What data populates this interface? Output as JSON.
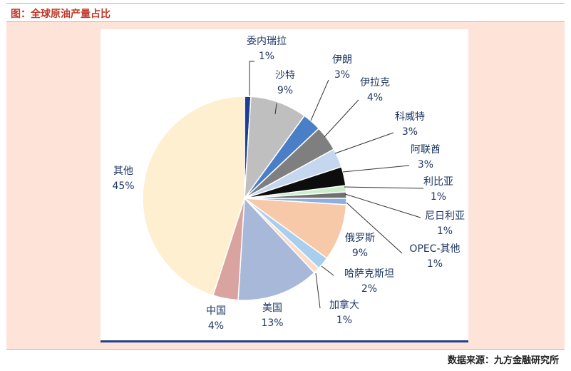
{
  "header": {
    "title": "图：全球原油产量占比"
  },
  "footer": {
    "source": "数据来源：九方金融研究所"
  },
  "chart_data": {
    "type": "pie",
    "start_angle_deg": 0,
    "direction": "clockwise",
    "slices": [
      {
        "label": "委内瑞拉",
        "value": 1,
        "pct": "1%",
        "color": "#1f3e8f"
      },
      {
        "label": "沙特",
        "value": 9,
        "pct": "9%",
        "color": "#bfbfbf"
      },
      {
        "label": "伊朗",
        "value": 3,
        "pct": "3%",
        "color": "#4a7fc7"
      },
      {
        "label": "伊拉克",
        "value": 4,
        "pct": "4%",
        "color": "#7f7f7f"
      },
      {
        "label": "科威特",
        "value": 3,
        "pct": "3%",
        "color": "#c5d7ee"
      },
      {
        "label": "阿联酋",
        "value": 3,
        "pct": "3%",
        "color": "#0d0d0d"
      },
      {
        "label": "利比亚",
        "value": 1,
        "pct": "1%",
        "color": "#c9efc9"
      },
      {
        "label": "尼日利亚",
        "value": 1,
        "pct": "1%",
        "color": "#707070"
      },
      {
        "label": "OPEC-其他",
        "value": 1,
        "pct": "1%",
        "color": "#8eaee0"
      },
      {
        "label": "俄罗斯",
        "value": 9,
        "pct": "9%",
        "color": "#f8c9a8"
      },
      {
        "label": "哈萨克斯坦",
        "value": 2,
        "pct": "2%",
        "color": "#a9cfee"
      },
      {
        "label": "加拿大",
        "value": 1,
        "pct": "1%",
        "color": "#fbdccb"
      },
      {
        "label": "美国",
        "value": 13,
        "pct": "13%",
        "color": "#a7b8d8"
      },
      {
        "label": "中国",
        "value": 4,
        "pct": "4%",
        "color": "#d9a3a0"
      },
      {
        "label": "其他",
        "value": 45,
        "pct": "45%",
        "color": "#fdefcf"
      }
    ]
  }
}
